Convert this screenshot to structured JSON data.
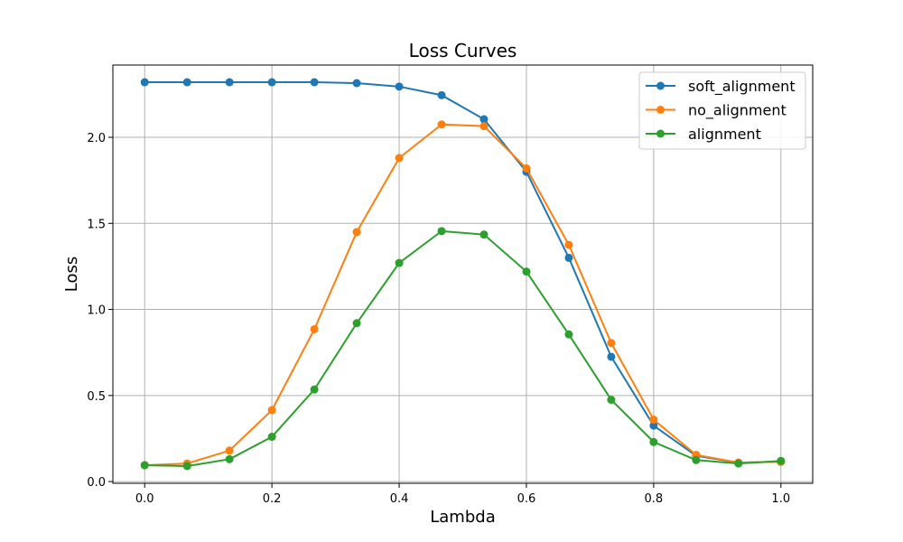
{
  "chart_data": {
    "type": "line",
    "title": "Loss Curves",
    "xlabel": "Lambda",
    "ylabel": "Loss",
    "xlim": [
      -0.05,
      1.05
    ],
    "ylim": [
      -0.01,
      2.42
    ],
    "xticks": [
      0.0,
      0.2,
      0.4,
      0.6,
      0.8,
      1.0
    ],
    "xtick_labels": [
      "0.0",
      "0.2",
      "0.4",
      "0.6",
      "0.8",
      "1.0"
    ],
    "yticks": [
      0.0,
      0.5,
      1.0,
      1.5,
      2.0
    ],
    "ytick_labels": [
      "0.0",
      "0.5",
      "1.0",
      "1.5",
      "2.0"
    ],
    "grid": true,
    "legend_position": "top-right",
    "x": [
      0.0,
      0.0667,
      0.1333,
      0.2,
      0.2667,
      0.3333,
      0.4,
      0.4667,
      0.5333,
      0.6,
      0.6667,
      0.7333,
      0.8,
      0.8667,
      0.9333,
      1.0
    ],
    "series": [
      {
        "name": "soft_alignment",
        "color": "#1f77b4",
        "values": [
          2.32,
          2.32,
          2.32,
          2.32,
          2.32,
          2.315,
          2.295,
          2.245,
          2.105,
          1.8,
          1.3,
          0.725,
          0.325,
          0.15,
          0.11,
          0.115
        ]
      },
      {
        "name": "no_alignment",
        "color": "#ff7f0e",
        "values": [
          0.095,
          0.105,
          0.18,
          0.415,
          0.885,
          1.45,
          1.88,
          2.075,
          2.065,
          1.82,
          1.375,
          0.805,
          0.36,
          0.155,
          0.11,
          0.115
        ]
      },
      {
        "name": "alignment",
        "color": "#2ca02c",
        "values": [
          0.095,
          0.09,
          0.13,
          0.26,
          0.535,
          0.92,
          1.27,
          1.455,
          1.435,
          1.22,
          0.855,
          0.475,
          0.23,
          0.125,
          0.105,
          0.12
        ]
      }
    ]
  }
}
